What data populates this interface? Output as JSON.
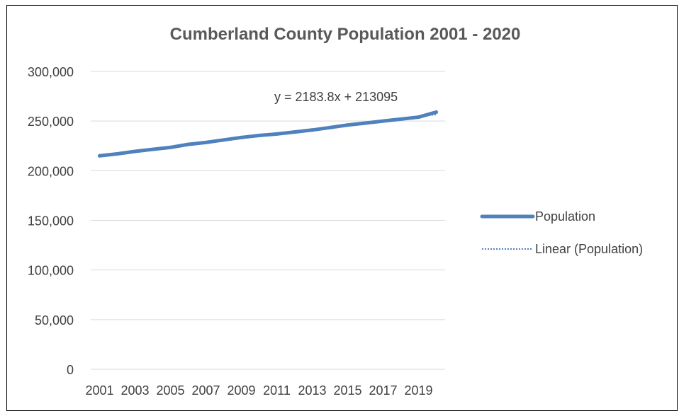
{
  "chart_data": {
    "type": "line",
    "title": "Cumberland County Population 2001 - 2020",
    "xlabel": "",
    "ylabel": "",
    "ylim": [
      0,
      300000
    ],
    "yticks": [
      "0",
      "50,000",
      "100,000",
      "150,000",
      "200,000",
      "250,000",
      "300,000"
    ],
    "categories": [
      "2001",
      "2002",
      "2003",
      "2004",
      "2005",
      "2006",
      "2007",
      "2008",
      "2009",
      "2010",
      "2011",
      "2012",
      "2013",
      "2014",
      "2015",
      "2016",
      "2017",
      "2018",
      "2019",
      "2020"
    ],
    "xtick_labels": [
      "2001",
      "2003",
      "2005",
      "2007",
      "2009",
      "2011",
      "2013",
      "2015",
      "2017",
      "2019"
    ],
    "grid": true,
    "legend_position": "right",
    "series": [
      {
        "name": "Population",
        "color": "#4f81bd",
        "values": [
          215000,
          217000,
          219500,
          221500,
          223500,
          226500,
          228500,
          231000,
          233500,
          235500,
          237000,
          239000,
          241000,
          243500,
          246000,
          248000,
          250000,
          252000,
          254000,
          259000
        ]
      }
    ],
    "trendline": {
      "name": "Linear (Population)",
      "type": "linear",
      "color": "#4f81bd",
      "slope": 2183.8,
      "intercept": 213095,
      "equation": "y = 2183.8x + 213095"
    }
  }
}
